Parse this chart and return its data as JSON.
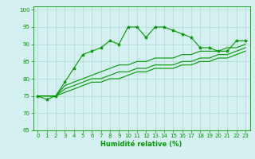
{
  "title": "",
  "xlabel": "Humidité relative (%)",
  "ylabel": "",
  "xlim": [
    -0.5,
    23.5
  ],
  "ylim": [
    65,
    101
  ],
  "yticks": [
    65,
    70,
    75,
    80,
    85,
    90,
    95,
    100
  ],
  "xticks": [
    0,
    1,
    2,
    3,
    4,
    5,
    6,
    7,
    8,
    9,
    10,
    11,
    12,
    13,
    14,
    15,
    16,
    17,
    18,
    19,
    20,
    21,
    22,
    23
  ],
  "bg_color": "#d4f0f0",
  "grid_color": "#b0d8d0",
  "line_color": "#009900",
  "series": [
    [
      75,
      74,
      75,
      79,
      83,
      87,
      88,
      89,
      91,
      90,
      95,
      95,
      92,
      95,
      95,
      94,
      93,
      92,
      89,
      89,
      88,
      88,
      91,
      91
    ],
    [
      75,
      75,
      75,
      78,
      79,
      80,
      81,
      82,
      83,
      84,
      84,
      85,
      85,
      86,
      86,
      86,
      87,
      87,
      88,
      88,
      88,
      89,
      89,
      90
    ],
    [
      75,
      75,
      75,
      77,
      78,
      79,
      80,
      80,
      81,
      82,
      82,
      83,
      83,
      84,
      84,
      84,
      85,
      85,
      86,
      86,
      87,
      87,
      88,
      89
    ],
    [
      75,
      75,
      75,
      76,
      77,
      78,
      79,
      79,
      80,
      80,
      81,
      82,
      82,
      83,
      83,
      83,
      84,
      84,
      85,
      85,
      86,
      86,
      87,
      88
    ]
  ],
  "marker_series": 0,
  "marker": "*",
  "marker_size": 3.0,
  "line_width": 0.8,
  "tick_labelsize": 5,
  "xlabel_fontsize": 6,
  "xlabel_bold": true
}
